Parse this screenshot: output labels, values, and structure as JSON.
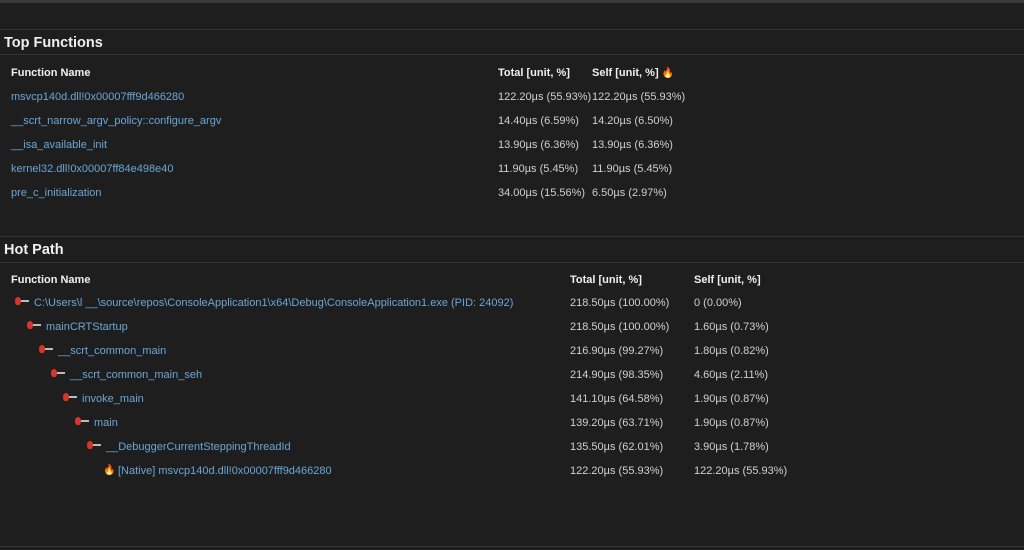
{
  "top_functions": {
    "title": "Top Functions",
    "headers": {
      "name": "Function Name",
      "total": "Total [unit, %]",
      "self": "Self [unit, %]"
    },
    "rows": [
      {
        "name": "msvcp140d.dll!0x00007fff9d466280",
        "total": "122.20µs (55.93%)",
        "self": "122.20µs (55.93%)"
      },
      {
        "name": "__scrt_narrow_argv_policy::configure_argv",
        "total": "14.40µs (6.59%)",
        "self": "14.20µs (6.50%)"
      },
      {
        "name": "__isa_available_init",
        "total": "13.90µs (6.36%)",
        "self": "13.90µs (6.36%)"
      },
      {
        "name": "kernel32.dll!0x00007ff84e498e40",
        "total": "11.90µs (5.45%)",
        "self": "11.90µs (5.45%)"
      },
      {
        "name": "pre_c_initialization",
        "total": "34.00µs (15.56%)",
        "self": "6.50µs (2.97%)"
      }
    ]
  },
  "hot_path": {
    "title": "Hot Path",
    "headers": {
      "name": "Function Name",
      "total": "Total [unit, %]",
      "self": "Self [unit, %]"
    },
    "rows": [
      {
        "name": "C:\\Users\\l __\\source\\repos\\ConsoleApplication1\\x64\\Debug\\ConsoleApplication1.exe (PID: 24092)",
        "total": "218.50µs (100.00%)",
        "self": "0 (0.00%)",
        "icon": "hot-path-icon"
      },
      {
        "name": "mainCRTStartup",
        "total": "218.50µs (100.00%)",
        "self": "1.60µs (0.73%)",
        "icon": "hot-path-icon"
      },
      {
        "name": "__scrt_common_main",
        "total": "216.90µs (99.27%)",
        "self": "1.80µs (0.82%)",
        "icon": "hot-path-icon"
      },
      {
        "name": "__scrt_common_main_seh",
        "total": "214.90µs (98.35%)",
        "self": "4.60µs (2.11%)",
        "icon": "hot-path-icon"
      },
      {
        "name": "invoke_main",
        "total": "141.10µs (64.58%)",
        "self": "1.90µs (0.87%)",
        "icon": "hot-path-icon"
      },
      {
        "name": "main",
        "total": "139.20µs (63.71%)",
        "self": "1.90µs (0.87%)",
        "icon": "hot-path-icon"
      },
      {
        "name": "__DebuggerCurrentSteppingThreadId",
        "total": "135.50µs (62.01%)",
        "self": "3.90µs (1.78%)",
        "icon": "hot-path-icon"
      },
      {
        "name": "[Native] msvcp140d.dll!0x00007fff9d466280",
        "total": "122.20µs (55.93%)",
        "self": "122.20µs (55.93%)",
        "icon": "flame-icon"
      }
    ]
  }
}
